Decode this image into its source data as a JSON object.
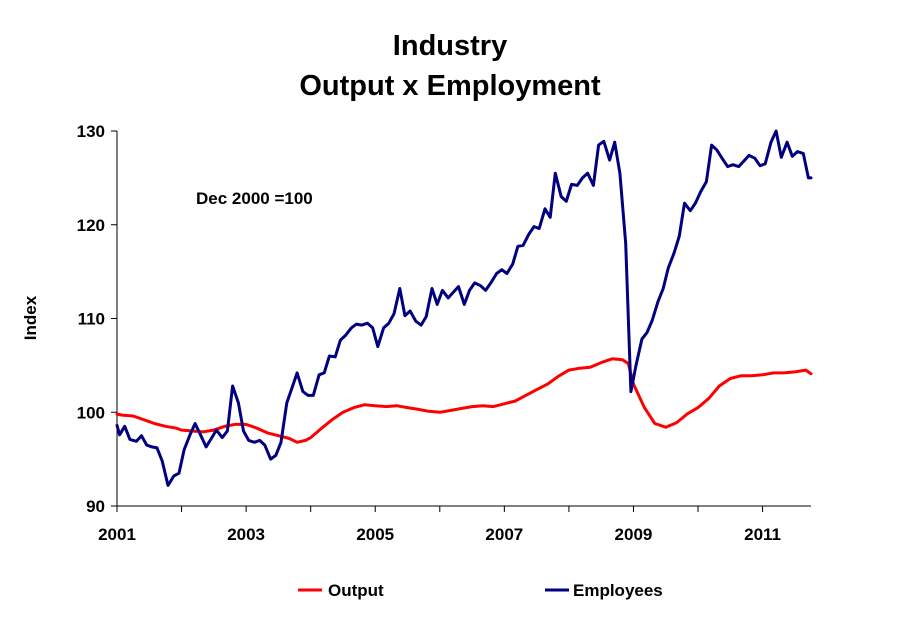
{
  "chart_data": {
    "type": "line",
    "title": "Industry",
    "subtitle": "Output x Employment",
    "ylabel": "Index",
    "xlabel": "",
    "annotation": "Dec 2000 =100",
    "ylim": [
      90,
      130
    ],
    "yticks": [
      "90",
      "100",
      "110",
      "120",
      "130"
    ],
    "xlim": [
      2001,
      2011.75
    ],
    "xticks": [
      "2001",
      "2003",
      "2005",
      "2007",
      "2009",
      "2011"
    ],
    "grid": false,
    "legend_position": "bottom",
    "series": [
      {
        "name": "Output",
        "color": "#ff0000",
        "x": [
          2001.0,
          2001.08,
          2001.25,
          2001.42,
          2001.58,
          2001.75,
          2001.92,
          2002.0,
          2002.17,
          2002.33,
          2002.5,
          2002.67,
          2002.83,
          2003.0,
          2003.17,
          2003.33,
          2003.5,
          2003.67,
          2003.79,
          2003.92,
          2004.0,
          2004.17,
          2004.33,
          2004.5,
          2004.67,
          2004.83,
          2005.0,
          2005.17,
          2005.33,
          2005.5,
          2005.67,
          2005.83,
          2006.0,
          2006.17,
          2006.33,
          2006.5,
          2006.67,
          2006.83,
          2007.0,
          2007.17,
          2007.33,
          2007.5,
          2007.67,
          2007.83,
          2008.0,
          2008.17,
          2008.33,
          2008.5,
          2008.67,
          2008.83,
          2008.92,
          2009.0,
          2009.17,
          2009.33,
          2009.5,
          2009.67,
          2009.83,
          2010.0,
          2010.17,
          2010.33,
          2010.5,
          2010.67,
          2010.83,
          2011.0,
          2011.17,
          2011.33,
          2011.5,
          2011.67,
          2011.75
        ],
        "values": [
          99.8,
          99.7,
          99.6,
          99.2,
          98.8,
          98.5,
          98.3,
          98.1,
          98.0,
          97.9,
          98.1,
          98.5,
          98.7,
          98.7,
          98.3,
          97.8,
          97.5,
          97.2,
          96.8,
          97.0,
          97.3,
          98.3,
          99.2,
          100.0,
          100.5,
          100.8,
          100.7,
          100.6,
          100.7,
          100.5,
          100.3,
          100.1,
          100.0,
          100.2,
          100.4,
          100.6,
          100.7,
          100.6,
          100.9,
          101.2,
          101.8,
          102.4,
          103.0,
          103.8,
          104.5,
          104.7,
          104.8,
          105.3,
          105.7,
          105.6,
          105.2,
          103.0,
          100.5,
          98.8,
          98.4,
          98.9,
          99.8,
          100.5,
          101.5,
          102.8,
          103.6,
          103.9,
          103.9,
          104.0,
          104.2,
          104.2,
          104.3,
          104.5,
          104.1
        ]
      },
      {
        "name": "Employees",
        "color": "#000080",
        "x": [
          2001.0,
          2001.04,
          2001.12,
          2001.2,
          2001.3,
          2001.38,
          2001.46,
          2001.54,
          2001.62,
          2001.7,
          2001.79,
          2001.88,
          2001.96,
          2002.04,
          2002.13,
          2002.21,
          2002.3,
          2002.38,
          2002.46,
          2002.54,
          2002.63,
          2002.71,
          2002.79,
          2002.88,
          2002.96,
          2003.04,
          2003.13,
          2003.21,
          2003.29,
          2003.38,
          2003.46,
          2003.54,
          2003.63,
          2003.71,
          2003.79,
          2003.88,
          2003.96,
          2004.04,
          2004.13,
          2004.21,
          2004.29,
          2004.38,
          2004.46,
          2004.54,
          2004.63,
          2004.71,
          2004.79,
          2004.88,
          2004.96,
          2005.04,
          2005.13,
          2005.21,
          2005.29,
          2005.38,
          2005.46,
          2005.54,
          2005.63,
          2005.71,
          2005.79,
          2005.88,
          2005.96,
          2006.04,
          2006.13,
          2006.21,
          2006.29,
          2006.38,
          2006.46,
          2006.54,
          2006.63,
          2006.71,
          2006.79,
          2006.88,
          2006.96,
          2007.04,
          2007.13,
          2007.21,
          2007.29,
          2007.38,
          2007.46,
          2007.54,
          2007.63,
          2007.71,
          2007.79,
          2007.88,
          2007.96,
          2008.04,
          2008.13,
          2008.21,
          2008.29,
          2008.38,
          2008.46,
          2008.54,
          2008.63,
          2008.71,
          2008.79,
          2008.88,
          2008.96,
          2009.04,
          2009.13,
          2009.21,
          2009.29,
          2009.38,
          2009.46,
          2009.54,
          2009.63,
          2009.71,
          2009.79,
          2009.88,
          2009.96,
          2010.04,
          2010.13,
          2010.21,
          2010.29,
          2010.38,
          2010.46,
          2010.54,
          2010.63,
          2010.71,
          2010.79,
          2010.88,
          2010.96,
          2011.04,
          2011.13,
          2011.21,
          2011.29,
          2011.38,
          2011.46,
          2011.54,
          2011.63,
          2011.71,
          2011.75
        ],
        "values": [
          98.6,
          97.6,
          98.5,
          97.1,
          96.9,
          97.5,
          96.5,
          96.3,
          96.2,
          94.8,
          92.2,
          93.2,
          93.5,
          96.0,
          97.6,
          98.8,
          97.5,
          96.3,
          97.2,
          98.1,
          97.3,
          98.0,
          102.8,
          101.0,
          98.0,
          97.0,
          96.8,
          97.0,
          96.5,
          95.0,
          95.4,
          96.8,
          101.0,
          102.6,
          104.2,
          102.2,
          101.8,
          101.8,
          104.0,
          104.2,
          106.0,
          105.9,
          107.7,
          108.2,
          109.0,
          109.4,
          109.3,
          109.5,
          109.0,
          107.0,
          109.0,
          109.5,
          110.5,
          113.2,
          110.3,
          110.8,
          109.7,
          109.3,
          110.2,
          113.2,
          111.5,
          113.0,
          112.2,
          112.8,
          113.4,
          111.5,
          113.0,
          113.8,
          113.5,
          113.0,
          113.8,
          114.8,
          115.2,
          114.8,
          115.8,
          117.7,
          117.8,
          119.0,
          119.8,
          119.6,
          121.7,
          120.8,
          125.5,
          123.0,
          122.5,
          124.3,
          124.2,
          125.0,
          125.5,
          124.2,
          128.5,
          128.9,
          126.9,
          128.8,
          125.5,
          118.0,
          102.2,
          105.0,
          107.8,
          108.5,
          109.8,
          111.8,
          113.2,
          115.4,
          117.0,
          118.8,
          122.3,
          121.5,
          122.3,
          123.5,
          124.6,
          128.5,
          128.0,
          127.0,
          126.2,
          126.4,
          126.2,
          126.8,
          127.4,
          127.1,
          126.3,
          126.5,
          128.8,
          130.0,
          127.2,
          128.8,
          127.3,
          127.8,
          127.6,
          125.0,
          125.0
        ]
      }
    ]
  }
}
